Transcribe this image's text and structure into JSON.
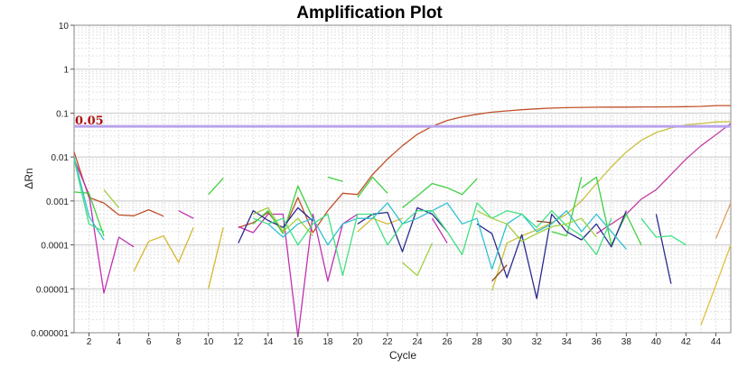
{
  "chart_data": {
    "type": "line",
    "title": "Amplification Plot",
    "xlabel": "Cycle",
    "ylabel": "ΔRn",
    "yscale": "log",
    "ylim": [
      1e-06,
      10
    ],
    "xlim": [
      1,
      45
    ],
    "x_ticks": [
      "2",
      "4",
      "6",
      "8",
      "10",
      "12",
      "14",
      "16",
      "18",
      "20",
      "22",
      "24",
      "26",
      "28",
      "30",
      "32",
      "34",
      "36",
      "38",
      "40",
      "42",
      "44"
    ],
    "y_ticks": [
      "10",
      "1",
      "0.1",
      "0.01",
      "0.001",
      "0.0001",
      "0.00001",
      "0.000001"
    ],
    "grid": true,
    "legend": "none",
    "threshold": {
      "value": 0.05,
      "label": "0.05",
      "color": "#b9a3ec"
    },
    "series": [
      {
        "color": "#c0502a",
        "points": [
          [
            1,
            0.013
          ],
          [
            2,
            0.0012
          ],
          [
            3,
            0.0009
          ],
          [
            4,
            0.00048
          ],
          [
            5,
            0.00046
          ],
          [
            6,
            0.00063
          ],
          [
            7,
            0.00045
          ],
          [
            null,
            null
          ],
          [
            12,
            0.00025
          ],
          [
            13,
            0.00032
          ],
          [
            14,
            0.00055
          ],
          [
            15,
            0.0002
          ],
          [
            16,
            0.0012
          ],
          [
            17,
            0.00019
          ],
          [
            18,
            0.0006
          ],
          [
            19,
            0.0015
          ],
          [
            20,
            0.0014
          ],
          [
            21,
            0.004
          ],
          [
            22,
            0.009
          ],
          [
            23,
            0.018
          ],
          [
            24,
            0.033
          ],
          [
            25,
            0.05
          ],
          [
            26,
            0.068
          ],
          [
            27,
            0.082
          ],
          [
            28,
            0.094
          ],
          [
            29,
            0.105
          ],
          [
            30,
            0.112
          ],
          [
            31,
            0.119
          ],
          [
            32,
            0.125
          ],
          [
            33,
            0.13
          ],
          [
            34,
            0.133
          ],
          [
            35,
            0.135
          ],
          [
            36,
            0.136
          ],
          [
            37,
            0.137
          ],
          [
            38,
            0.137
          ],
          [
            39,
            0.138
          ],
          [
            40,
            0.138
          ],
          [
            41,
            0.139
          ],
          [
            42,
            0.14
          ],
          [
            43,
            0.142
          ],
          [
            44,
            0.148
          ],
          [
            45,
            0.148
          ]
        ]
      },
      {
        "color": "#c9c040",
        "points": [
          [
            29,
            9e-06
          ],
          [
            30,
            0.00011
          ],
          [
            31,
            0.00016
          ],
          [
            32,
            0.00022
          ],
          [
            33,
            0.00032
          ],
          [
            34,
            0.0005
          ],
          [
            35,
            0.001
          ],
          [
            36,
            0.0025
          ],
          [
            37,
            0.006
          ],
          [
            38,
            0.013
          ],
          [
            39,
            0.024
          ],
          [
            40,
            0.036
          ],
          [
            41,
            0.046
          ],
          [
            42,
            0.054
          ],
          [
            43,
            0.058
          ],
          [
            44,
            0.063
          ],
          [
            45,
            0.064
          ]
        ]
      },
      {
        "color": "#c040a0",
        "points": [
          [
            36,
            0.00018
          ],
          [
            37,
            0.0003
          ],
          [
            38,
            0.0005
          ],
          [
            39,
            0.0011
          ],
          [
            40,
            0.0018
          ],
          [
            41,
            0.004
          ],
          [
            42,
            0.009
          ],
          [
            43,
            0.018
          ],
          [
            44,
            0.032
          ],
          [
            45,
            0.058
          ]
        ]
      },
      {
        "color": "#e0c040",
        "points": [
          [
            43,
            1.5e-06
          ],
          [
            44,
            1.2e-05
          ],
          [
            45,
            0.0001
          ]
        ]
      },
      {
        "color": "#e0a060",
        "points": [
          [
            44,
            0.00014
          ],
          [
            45,
            0.0009
          ]
        ]
      },
      {
        "color": "#c030b0",
        "points": [
          [
            1,
            0.009
          ],
          [
            2,
            0.0014
          ],
          [
            3,
            8e-06
          ],
          [
            4,
            0.00015
          ],
          [
            5,
            9e-05
          ],
          [
            null,
            null
          ],
          [
            8,
            0.0006
          ],
          [
            9,
            0.0004
          ],
          [
            null,
            null
          ],
          [
            12,
            0.00026
          ],
          [
            13,
            0.00019
          ],
          [
            14,
            0.0005
          ],
          [
            15,
            0.0005
          ],
          [
            16,
            8e-07
          ],
          [
            17,
            0.0005
          ],
          [
            18,
            1.5e-05
          ],
          [
            19,
            0.0003
          ],
          [
            20,
            0.0005
          ],
          [
            null,
            null
          ],
          [
            25,
            0.0004
          ],
          [
            26,
            0.00011
          ]
        ]
      },
      {
        "color": "#d4b830",
        "points": [
          [
            5,
            2.5e-05
          ],
          [
            6,
            0.00012
          ],
          [
            7,
            0.00016
          ],
          [
            8,
            4e-05
          ],
          [
            9,
            0.00025
          ],
          [
            null,
            null
          ],
          [
            10,
            1e-05
          ],
          [
            11,
            0.00025
          ],
          [
            null,
            null
          ],
          [
            20,
            0.0002
          ],
          [
            21,
            0.0004
          ],
          [
            22,
            0.0003
          ],
          [
            23,
            0.0004
          ]
        ]
      },
      {
        "color": "#40d040",
        "points": [
          [
            1,
            0.0016
          ],
          [
            2,
            0.0015
          ],
          [
            3,
            0.00016
          ],
          [
            null,
            null
          ],
          [
            10,
            0.0014
          ],
          [
            11,
            0.0033
          ],
          [
            null,
            null
          ],
          [
            13,
            0.0003
          ],
          [
            14,
            0.0006
          ],
          [
            15,
            0.00018
          ],
          [
            16,
            0.0022
          ],
          [
            17,
            0.0004
          ],
          [
            null,
            null
          ],
          [
            18,
            0.0035
          ],
          [
            19,
            0.0028
          ],
          [
            null,
            null
          ],
          [
            20,
            0.0012
          ],
          [
            21,
            0.0035
          ],
          [
            22,
            0.0015
          ],
          [
            null,
            null
          ],
          [
            23,
            0.0007
          ],
          [
            24,
            0.0013
          ],
          [
            25,
            0.0025
          ],
          [
            26,
            0.002
          ],
          [
            27,
            0.0014
          ],
          [
            28,
            0.0032
          ],
          [
            null,
            null
          ],
          [
            33,
            0.0002
          ],
          [
            34,
            0.00016
          ],
          [
            35,
            0.0035
          ],
          [
            null,
            null
          ],
          [
            35,
            0.002
          ],
          [
            36,
            0.0035
          ],
          [
            37,
            0.0001
          ],
          [
            38,
            0.0005
          ],
          [
            39,
            0.0001
          ]
        ]
      },
      {
        "color": "#2a2a90",
        "points": [
          [
            12,
            0.00011
          ],
          [
            13,
            0.0006
          ],
          [
            14,
            0.00036
          ],
          [
            15,
            0.00025
          ],
          [
            16,
            0.0007
          ],
          [
            17,
            0.00035
          ],
          [
            null,
            null
          ],
          [
            20,
            0.0003
          ],
          [
            21,
            0.0005
          ],
          [
            22,
            0.00055
          ],
          [
            23,
            7e-05
          ],
          [
            24,
            0.0007
          ],
          [
            25,
            0.0005
          ],
          [
            26,
            0.0002
          ],
          [
            null,
            null
          ],
          [
            28,
            0.0003
          ],
          [
            29,
            0.00018
          ],
          [
            30,
            1.8e-05
          ],
          [
            31,
            0.00017
          ],
          [
            32,
            6e-06
          ],
          [
            33,
            0.0005
          ],
          [
            34,
            0.0002
          ],
          [
            35,
            0.00013
          ],
          [
            36,
            0.0003
          ],
          [
            37,
            9e-05
          ],
          [
            38,
            0.0006
          ],
          [
            null,
            null
          ],
          [
            40,
            0.0005
          ],
          [
            41,
            1.3e-05
          ]
        ]
      },
      {
        "color": "#30c0d0",
        "points": [
          [
            1,
            0.01
          ],
          [
            2,
            0.00045
          ],
          [
            3,
            0.00013
          ],
          [
            null,
            null
          ],
          [
            10,
            0.0005
          ],
          [
            null,
            null
          ],
          [
            14,
            0.0003
          ],
          [
            15,
            0.00015
          ],
          [
            16,
            0.0003
          ],
          [
            17,
            0.0004
          ],
          [
            18,
            0.0001
          ],
          [
            19,
            0.0003
          ],
          [
            20,
            0.0004
          ],
          [
            21,
            0.0004
          ],
          [
            22,
            0.0009
          ],
          [
            23,
            0.0003
          ],
          [
            24,
            0.0004
          ],
          [
            25,
            0.0006
          ],
          [
            26,
            0.0009
          ],
          [
            27,
            0.0003
          ],
          [
            28,
            0.0004
          ],
          [
            29,
            2.8e-05
          ],
          [
            30,
            0.0003
          ],
          [
            31,
            0.0005
          ],
          [
            32,
            0.0002
          ],
          [
            33,
            0.0003
          ],
          [
            34,
            0.0006
          ],
          [
            35,
            0.0002
          ],
          [
            36,
            0.0005
          ],
          [
            37,
            0.0002
          ],
          [
            38,
            8e-05
          ]
        ]
      },
      {
        "color": "#40e080",
        "points": [
          [
            1,
            0.009
          ],
          [
            2,
            0.0003
          ],
          [
            3,
            0.0002
          ],
          [
            null,
            null
          ],
          [
            13,
            0.0004
          ],
          [
            14,
            0.0003
          ],
          [
            15,
            0.0004
          ],
          [
            16,
            0.0001
          ],
          [
            17,
            0.0003
          ],
          [
            18,
            0.0005
          ],
          [
            19,
            2e-05
          ],
          [
            20,
            0.0005
          ],
          [
            21,
            0.0005
          ],
          [
            22,
            0.0001
          ],
          [
            23,
            0.0003
          ],
          [
            24,
            0.0006
          ],
          [
            25,
            0.0006
          ],
          [
            26,
            0.0002
          ],
          [
            27,
            6e-05
          ],
          [
            28,
            0.0009
          ],
          [
            29,
            0.0004
          ],
          [
            30,
            0.0006
          ],
          [
            31,
            0.0005
          ],
          [
            32,
            0.00025
          ],
          [
            33,
            0.0006
          ],
          [
            34,
            0.00027
          ],
          [
            35,
            0.00016
          ],
          [
            36,
            6e-05
          ],
          [
            37,
            0.0004
          ],
          [
            null,
            null
          ],
          [
            39,
            0.0004
          ],
          [
            40,
            0.00015
          ],
          [
            41,
            0.00016
          ],
          [
            42,
            0.0001
          ]
        ]
      },
      {
        "color": "#a0d040",
        "points": [
          [
            3,
            0.0018
          ],
          [
            4,
            0.0007
          ],
          [
            null,
            null
          ],
          [
            13,
            0.0005
          ],
          [
            14,
            0.0007
          ],
          [
            15,
            0.0002
          ],
          [
            16,
            0.0004
          ],
          [
            17,
            0.00016
          ],
          [
            null,
            null
          ],
          [
            23,
            4e-05
          ],
          [
            24,
            2e-05
          ],
          [
            25,
            0.00011
          ],
          [
            null,
            null
          ],
          [
            28,
            0.0006
          ],
          [
            29,
            0.0004
          ],
          [
            30,
            0.0003
          ],
          [
            31,
            0.00012
          ],
          [
            32,
            0.00018
          ],
          [
            33,
            0.00026
          ],
          [
            34,
            0.0003
          ],
          [
            35,
            0.0004
          ],
          [
            36,
            0.00015
          ]
        ]
      },
      {
        "color": "#904020",
        "points": [
          [
            29,
            1.5e-05
          ],
          [
            30,
            3.5e-05
          ],
          [
            null,
            null
          ],
          [
            32,
            0.00035
          ],
          [
            33,
            0.00032
          ]
        ]
      }
    ]
  }
}
